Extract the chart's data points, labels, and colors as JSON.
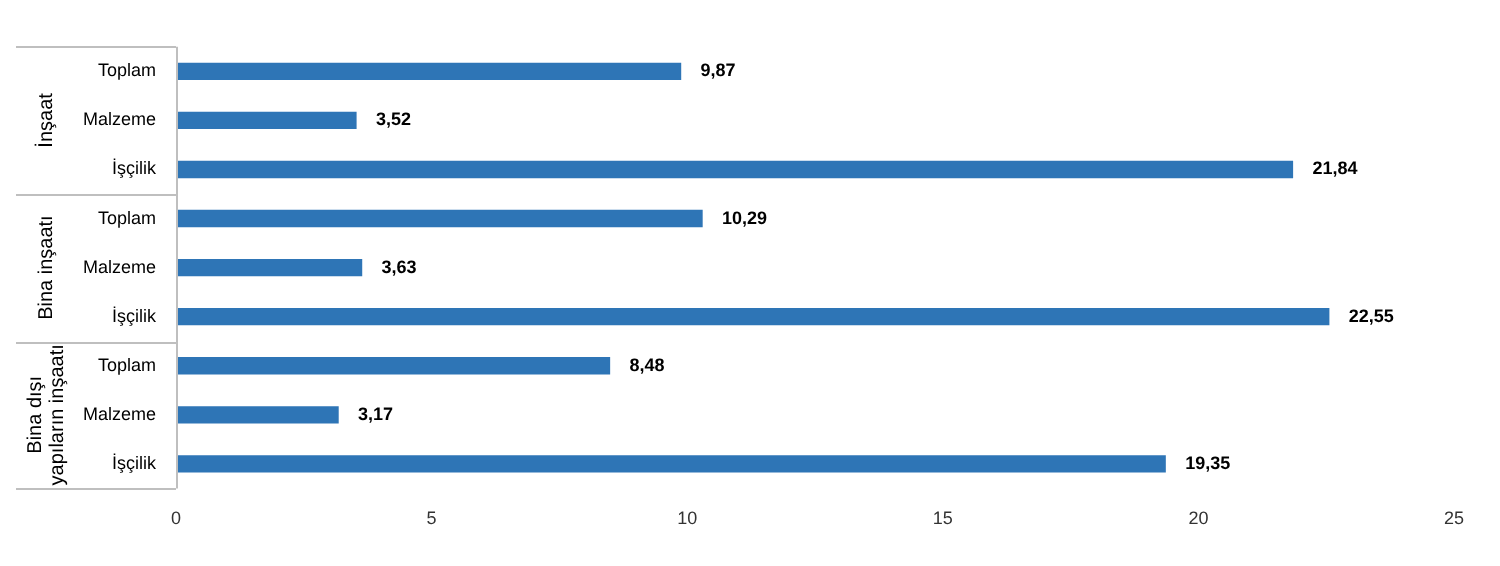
{
  "chart_data": {
    "type": "bar",
    "orientation": "horizontal",
    "categories": [
      "Toplam",
      "Malzeme",
      "İşçilik",
      "Toplam",
      "Malzeme",
      "İşçilik",
      "Toplam",
      "Malzeme",
      "İşçilik"
    ],
    "values": [
      9.87,
      3.52,
      21.84,
      10.29,
      3.63,
      22.55,
      8.48,
      3.17,
      19.35
    ],
    "value_labels": [
      "9,87",
      "3,52",
      "21,84",
      "10,29",
      "3,63",
      "22,55",
      "8,48",
      "3,17",
      "19,35"
    ],
    "color": "#2e75b6",
    "xlim": [
      0,
      25
    ],
    "xticks": [
      0,
      5,
      10,
      15,
      20,
      25
    ],
    "grid": false,
    "legend": false,
    "annotations": [
      "İnşaat",
      "Bina inşaatı",
      "Bina dışı yapıların inşaatı"
    ]
  }
}
